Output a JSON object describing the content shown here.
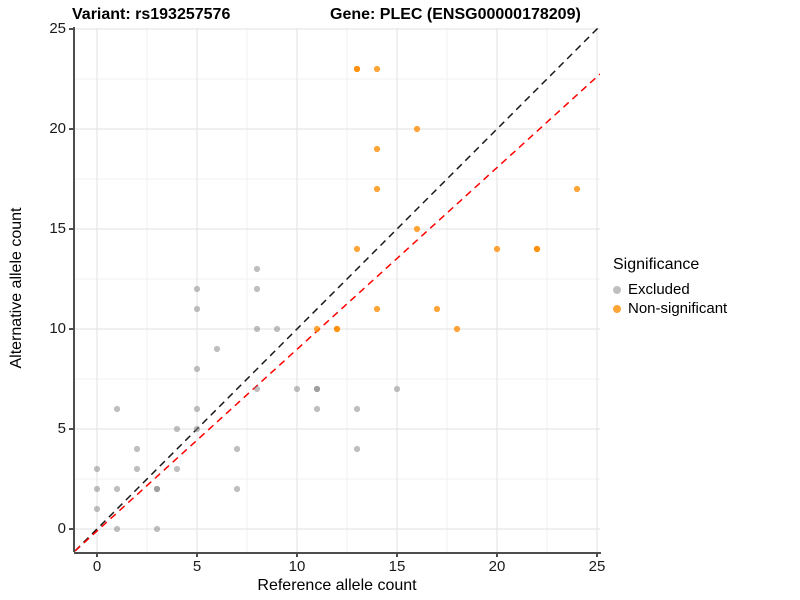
{
  "figure": {
    "title_left": "Variant: rs193257576",
    "title_right": "Gene: PLEC (ENSG00000178209)"
  },
  "legend": {
    "title": "Significance",
    "items": [
      {
        "label": "Excluded",
        "color": "rgba(127,127,127,0.5)"
      },
      {
        "label": "Non-significant",
        "color": "rgba(255,140,0,0.78)"
      }
    ]
  },
  "chart_data": {
    "type": "scatter",
    "title": "Variant: rs193257576 / Gene: PLEC (ENSG00000178209)",
    "xlabel": "Reference allele count",
    "ylabel": "Alternative allele count",
    "xlim": [
      -1.1,
      25.15
    ],
    "ylim": [
      -1.15,
      25.05
    ],
    "xticks": [
      0,
      5,
      10,
      15,
      20,
      25
    ],
    "yticks": [
      0,
      5,
      10,
      15,
      20,
      25
    ],
    "minor_ticks": [
      2.5,
      7.5,
      12.5,
      17.5,
      22.5
    ],
    "grid": true,
    "legend_position": "right",
    "point_radius": 3.1,
    "colors": {
      "major_grid": "#e6e6e6",
      "minor_grid": "#f2f2f2",
      "axis": "#4d4d4d"
    },
    "series": [
      {
        "name": "Excluded",
        "color": "rgba(127,127,127,0.5)",
        "points": [
          [
            0,
            1
          ],
          [
            0,
            2
          ],
          [
            0,
            3
          ],
          [
            1,
            0
          ],
          [
            1,
            2
          ],
          [
            1,
            6
          ],
          [
            2,
            3
          ],
          [
            2,
            4
          ],
          [
            3,
            0
          ],
          [
            3,
            2
          ],
          [
            3,
            2
          ],
          [
            4,
            3
          ],
          [
            4,
            5
          ],
          [
            5,
            5
          ],
          [
            5,
            6
          ],
          [
            5,
            8
          ],
          [
            5,
            11
          ],
          [
            5,
            12
          ],
          [
            6,
            9
          ],
          [
            7,
            2
          ],
          [
            7,
            4
          ],
          [
            8,
            7
          ],
          [
            8,
            10
          ],
          [
            8,
            12
          ],
          [
            8,
            13
          ],
          [
            9,
            10
          ],
          [
            10,
            7
          ],
          [
            11,
            6
          ],
          [
            11,
            7
          ],
          [
            11,
            7
          ],
          [
            13,
            4
          ],
          [
            13,
            6
          ],
          [
            15,
            7
          ]
        ]
      },
      {
        "name": "Non-significant",
        "color": "rgba(255,140,0,0.78)",
        "points": [
          [
            11,
            10
          ],
          [
            12,
            10
          ],
          [
            12,
            10
          ],
          [
            13,
            14
          ],
          [
            13,
            23
          ],
          [
            13,
            23
          ],
          [
            14,
            11
          ],
          [
            14,
            17
          ],
          [
            14,
            19
          ],
          [
            14,
            23
          ],
          [
            16,
            15
          ],
          [
            16,
            20
          ],
          [
            17,
            11
          ],
          [
            18,
            10
          ],
          [
            20,
            14
          ],
          [
            22,
            14
          ],
          [
            22,
            14
          ],
          [
            24,
            17
          ]
        ]
      }
    ],
    "reference_lines": [
      {
        "name": "identity-line",
        "color": "#1a1a1a",
        "dashed": true,
        "from": [
          -1.1,
          -1.1
        ],
        "to": [
          25.15,
          25.15
        ]
      },
      {
        "name": "fitted-line",
        "color": "#ff0000",
        "dashed": true,
        "from": [
          -1.1,
          -1.1
        ],
        "to": [
          25.15,
          22.75
        ]
      }
    ]
  }
}
